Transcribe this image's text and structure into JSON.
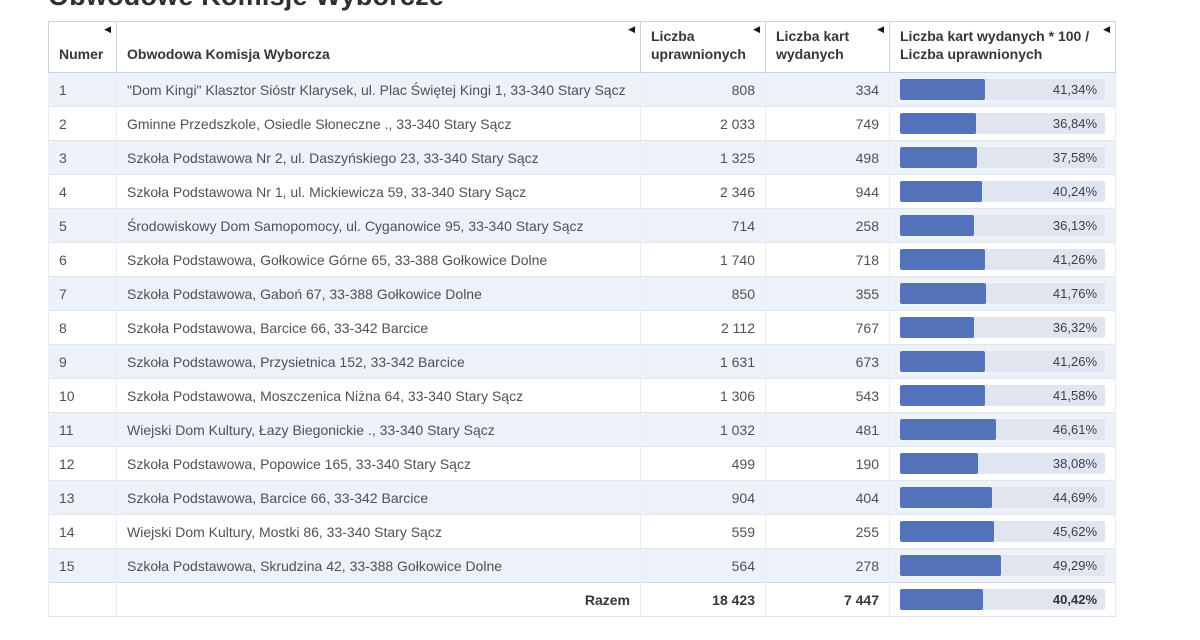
{
  "page": {
    "title": "Obwodowe Komisje Wyborcze"
  },
  "colors": {
    "bar_fill": "#5472B9",
    "bar_track": "#E0E5F0",
    "row_stripe": "#EDF1F8"
  },
  "table": {
    "columns": [
      {
        "label": "Numer",
        "sort_icon": "left-triangle"
      },
      {
        "label": "Obwodowa Komisja Wyborcza",
        "sort_icon": "left-triangle"
      },
      {
        "label": "Liczba uprawnionych",
        "sort_icon": "left-triangle"
      },
      {
        "label": "Liczba kart wydanych",
        "sort_icon": "left-triangle"
      },
      {
        "label": "Liczba kart wydanych * 100 / Liczba uprawnionych",
        "sort_icon": "left-triangle"
      }
    ],
    "rows": [
      {
        "number": "1",
        "name": "\"Dom Kingi\" Klasztor Sióstr Klarysek, ul. Plac Świętej Kingi 1, 33-340 Stary Sącz",
        "eligible": "808",
        "issued": "334",
        "percent": 41.34,
        "percent_label": "41,34%"
      },
      {
        "number": "2",
        "name": "Gminne Przedszkole, Osiedle Słoneczne ., 33-340 Stary Sącz",
        "eligible": "2 033",
        "issued": "749",
        "percent": 36.84,
        "percent_label": "36,84%"
      },
      {
        "number": "3",
        "name": "Szkoła Podstawowa Nr 2, ul. Daszyńskiego 23, 33-340 Stary Sącz",
        "eligible": "1 325",
        "issued": "498",
        "percent": 37.58,
        "percent_label": "37,58%"
      },
      {
        "number": "4",
        "name": "Szkoła Podstawowa Nr 1, ul. Mickiewicza 59, 33-340 Stary Sącz",
        "eligible": "2 346",
        "issued": "944",
        "percent": 40.24,
        "percent_label": "40,24%"
      },
      {
        "number": "5",
        "name": "Środowiskowy Dom Samopomocy, ul. Cyganowice 95, 33-340 Stary Sącz",
        "eligible": "714",
        "issued": "258",
        "percent": 36.13,
        "percent_label": "36,13%"
      },
      {
        "number": "6",
        "name": "Szkoła Podstawowa, Gołkowice Górne 65, 33-388 Gołkowice Dolne",
        "eligible": "1 740",
        "issued": "718",
        "percent": 41.26,
        "percent_label": "41,26%"
      },
      {
        "number": "7",
        "name": "Szkoła Podstawowa, Gaboń 67, 33-388 Gołkowice Dolne",
        "eligible": "850",
        "issued": "355",
        "percent": 41.76,
        "percent_label": "41,76%"
      },
      {
        "number": "8",
        "name": "Szkoła Podstawowa, Barcice 66, 33-342 Barcice",
        "eligible": "2 112",
        "issued": "767",
        "percent": 36.32,
        "percent_label": "36,32%"
      },
      {
        "number": "9",
        "name": "Szkoła Podstawowa, Przysietnica 152, 33-342 Barcice",
        "eligible": "1 631",
        "issued": "673",
        "percent": 41.26,
        "percent_label": "41,26%"
      },
      {
        "number": "10",
        "name": "Szkoła Podstawowa, Moszczenica Niżna 64, 33-340 Stary Sącz",
        "eligible": "1 306",
        "issued": "543",
        "percent": 41.58,
        "percent_label": "41,58%"
      },
      {
        "number": "11",
        "name": "Wiejski Dom Kultury, Łazy Biegonickie ., 33-340 Stary Sącz",
        "eligible": "1 032",
        "issued": "481",
        "percent": 46.61,
        "percent_label": "46,61%"
      },
      {
        "number": "12",
        "name": "Szkoła Podstawowa, Popowice 165, 33-340 Stary Sącz",
        "eligible": "499",
        "issued": "190",
        "percent": 38.08,
        "percent_label": "38,08%"
      },
      {
        "number": "13",
        "name": "Szkoła Podstawowa, Barcice 66, 33-342 Barcice",
        "eligible": "904",
        "issued": "404",
        "percent": 44.69,
        "percent_label": "44,69%"
      },
      {
        "number": "14",
        "name": "Wiejski Dom Kultury, Mostki 86, 33-340 Stary Sącz",
        "eligible": "559",
        "issued": "255",
        "percent": 45.62,
        "percent_label": "45,62%"
      },
      {
        "number": "15",
        "name": "Szkoła Podstawowa, Skrudzina 42, 33-388 Gołkowice Dolne",
        "eligible": "564",
        "issued": "278",
        "percent": 49.29,
        "percent_label": "49,29%"
      }
    ],
    "totals": {
      "label": "Razem",
      "eligible": "18 423",
      "issued": "7 447",
      "percent": 40.42,
      "percent_label": "40,42%"
    }
  }
}
